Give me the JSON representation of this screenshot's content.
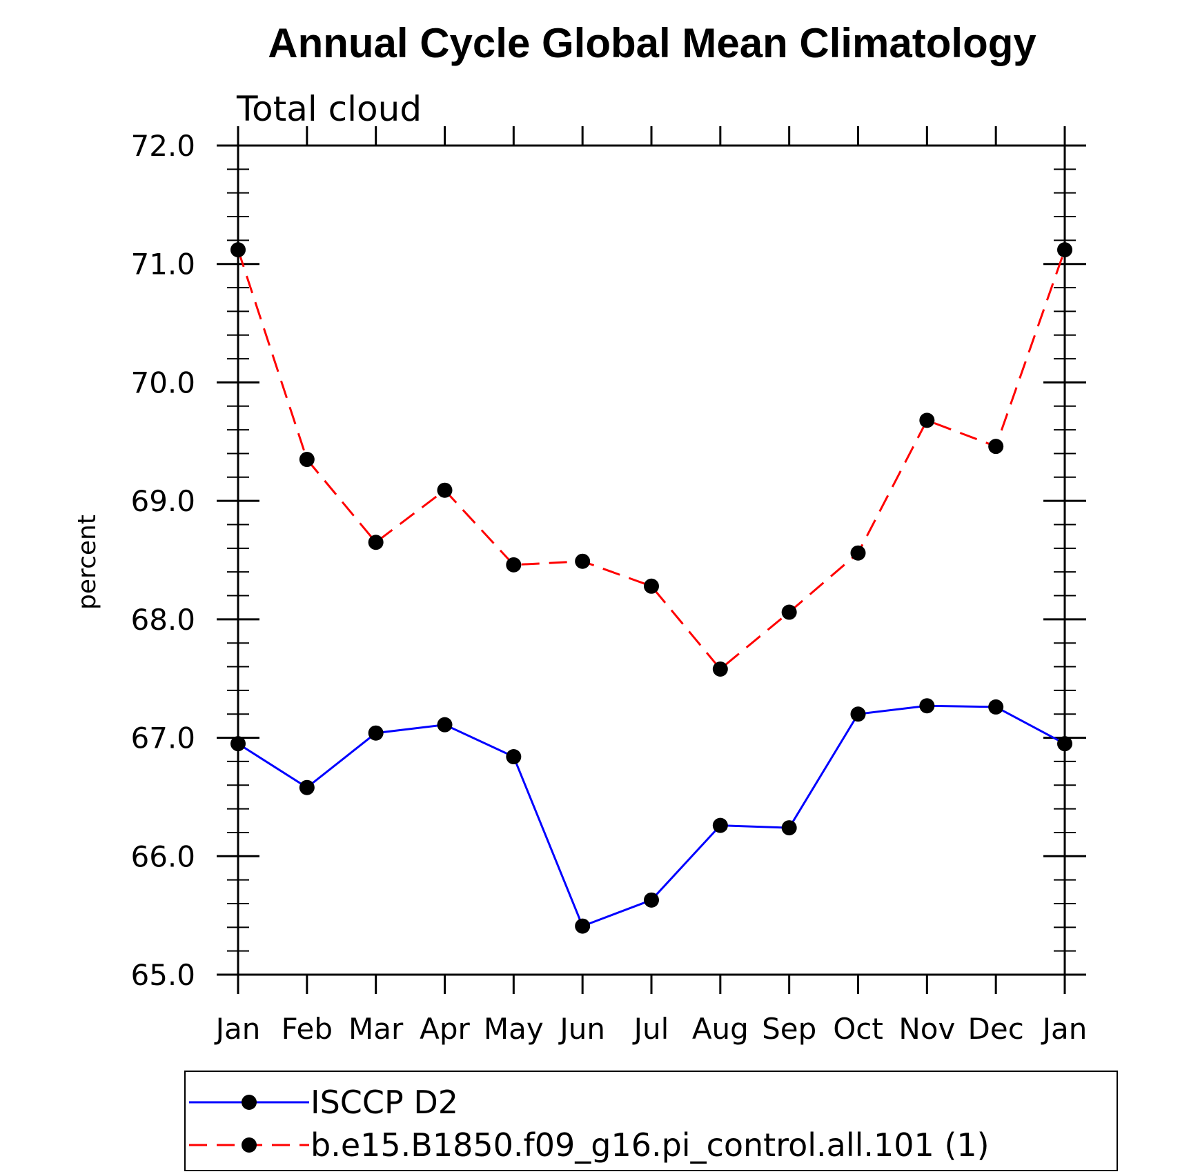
{
  "chart_data": {
    "type": "line",
    "title": "Annual Cycle Global Mean Climatology",
    "subtitle": "Total cloud",
    "xlabel": "",
    "ylabel": "percent",
    "categories": [
      "Jan",
      "Feb",
      "Mar",
      "Apr",
      "May",
      "Jun",
      "Jul",
      "Aug",
      "Sep",
      "Oct",
      "Nov",
      "Dec",
      "Jan"
    ],
    "ylim": [
      65.0,
      72.0
    ],
    "yticks": [
      "65.0",
      "66.0",
      "67.0",
      "68.0",
      "69.0",
      "70.0",
      "71.0",
      "72.0"
    ],
    "grid": false,
    "legend_position": "bottom",
    "series": [
      {
        "name": "ISCCP D2",
        "color": "#0000ff",
        "dash": "solid",
        "values": [
          66.95,
          66.58,
          67.04,
          67.11,
          66.84,
          65.41,
          65.63,
          66.26,
          66.24,
          67.2,
          67.27,
          67.26,
          66.95
        ]
      },
      {
        "name": "b.e15.B1850.f09_g16.pi_control.all.101 (1)",
        "color": "#ff0000",
        "dash": "dashed",
        "values": [
          71.12,
          69.35,
          68.65,
          69.09,
          68.46,
          68.49,
          68.28,
          67.58,
          68.06,
          68.56,
          69.68,
          69.46,
          71.12
        ]
      }
    ]
  }
}
